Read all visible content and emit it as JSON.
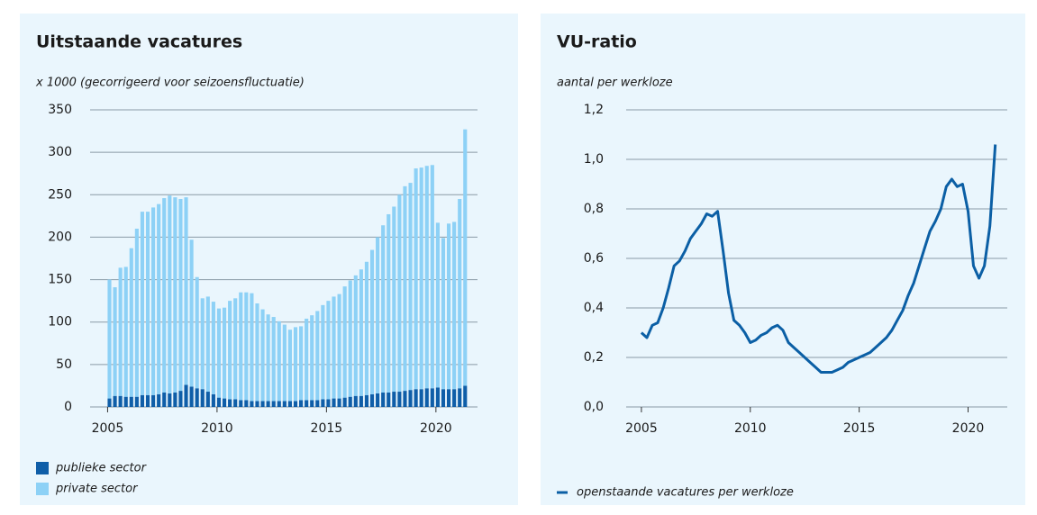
{
  "chart_data": [
    {
      "type": "bar",
      "stacked": true,
      "title": "Uitstaande vacatures",
      "subtitle": "x 1000 (gecorrigeerd voor seizoensfluctuatie)",
      "x": [
        2005,
        2005.25,
        2005.5,
        2005.75,
        2006,
        2006.25,
        2006.5,
        2006.75,
        2007,
        2007.25,
        2007.5,
        2007.75,
        2008,
        2008.25,
        2008.5,
        2008.75,
        2009,
        2009.25,
        2009.5,
        2009.75,
        2010,
        2010.25,
        2010.5,
        2010.75,
        2011,
        2011.25,
        2011.5,
        2011.75,
        2012,
        2012.25,
        2012.5,
        2012.75,
        2013,
        2013.25,
        2013.5,
        2013.75,
        2014,
        2014.25,
        2014.5,
        2014.75,
        2015,
        2015.25,
        2015.5,
        2015.75,
        2016,
        2016.25,
        2016.5,
        2016.75,
        2017,
        2017.25,
        2017.5,
        2017.75,
        2018,
        2018.25,
        2018.5,
        2018.75,
        2019,
        2019.25,
        2019.5,
        2019.75,
        2020,
        2020.25,
        2020.5,
        2020.75,
        2021,
        2021.25
      ],
      "series": [
        {
          "name": "publieke sector",
          "color": "#0f5ea8",
          "values": [
            10,
            13,
            13,
            12,
            12,
            12,
            14,
            14,
            14,
            15,
            17,
            16,
            17,
            19,
            26,
            24,
            22,
            21,
            18,
            15,
            11,
            10,
            9,
            9,
            8,
            8,
            7,
            7,
            7,
            7,
            7,
            7,
            7,
            7,
            7,
            8,
            8,
            8,
            8,
            9,
            9,
            10,
            10,
            11,
            12,
            13,
            13,
            14,
            15,
            16,
            17,
            17,
            18,
            18,
            19,
            20,
            21,
            21,
            22,
            22,
            23,
            21,
            21,
            21,
            22,
            25
          ]
        },
        {
          "name": "private sector",
          "color": "#8dd1f6",
          "values": [
            140,
            128,
            151,
            153,
            175,
            198,
            216,
            216,
            221,
            224,
            229,
            233,
            230,
            226,
            221,
            173,
            131,
            107,
            112,
            109,
            105,
            107,
            116,
            119,
            127,
            127,
            127,
            115,
            108,
            102,
            99,
            94,
            90,
            84,
            87,
            87,
            96,
            100,
            105,
            111,
            116,
            120,
            123,
            131,
            137,
            142,
            149,
            157,
            170,
            184,
            197,
            210,
            218,
            232,
            241,
            244,
            260,
            261,
            262,
            263,
            194,
            178,
            195,
            197,
            223,
            302
          ]
        }
      ],
      "xlim": [
        2004.2,
        2021.9
      ],
      "xticks": [
        2005,
        2010,
        2015,
        2020
      ],
      "ylim": [
        0,
        350
      ],
      "yticks": [
        0,
        50,
        100,
        150,
        200,
        250,
        300,
        350
      ],
      "grid": true,
      "legend": "bottom-left"
    },
    {
      "type": "line",
      "title": "VU-ratio",
      "subtitle": "aantal per werkloze",
      "x": [
        2005,
        2005.25,
        2005.5,
        2005.75,
        2006,
        2006.25,
        2006.5,
        2006.75,
        2007,
        2007.25,
        2007.5,
        2007.75,
        2008,
        2008.25,
        2008.5,
        2008.75,
        2009,
        2009.25,
        2009.5,
        2009.75,
        2010,
        2010.25,
        2010.5,
        2010.75,
        2011,
        2011.25,
        2011.5,
        2011.75,
        2012,
        2012.25,
        2012.5,
        2012.75,
        2013,
        2013.25,
        2013.5,
        2013.75,
        2014,
        2014.25,
        2014.5,
        2014.75,
        2015,
        2015.25,
        2015.5,
        2015.75,
        2016,
        2016.25,
        2016.5,
        2016.75,
        2017,
        2017.25,
        2017.5,
        2017.75,
        2018,
        2018.25,
        2018.5,
        2018.75,
        2019,
        2019.25,
        2019.5,
        2019.75,
        2020,
        2020.25,
        2020.5,
        2020.75,
        2021,
        2021.25
      ],
      "series": [
        {
          "name": "openstaande vacatures per werkloze",
          "color": "#0b5fa5",
          "values": [
            0.3,
            0.28,
            0.33,
            0.34,
            0.4,
            0.48,
            0.57,
            0.59,
            0.63,
            0.68,
            0.71,
            0.74,
            0.78,
            0.77,
            0.79,
            0.63,
            0.46,
            0.35,
            0.33,
            0.3,
            0.26,
            0.27,
            0.29,
            0.3,
            0.32,
            0.33,
            0.31,
            0.26,
            0.24,
            0.22,
            0.2,
            0.18,
            0.16,
            0.14,
            0.14,
            0.14,
            0.15,
            0.16,
            0.18,
            0.19,
            0.2,
            0.21,
            0.22,
            0.24,
            0.26,
            0.28,
            0.31,
            0.35,
            0.39,
            0.45,
            0.5,
            0.57,
            0.64,
            0.71,
            0.75,
            0.8,
            0.89,
            0.92,
            0.89,
            0.9,
            0.79,
            0.57,
            0.52,
            0.57,
            0.73,
            1.06
          ]
        }
      ],
      "xlim": [
        2004.3,
        2021.8
      ],
      "xticks": [
        2005,
        2010,
        2015,
        2020
      ],
      "ylim": [
        0,
        1.2
      ],
      "yticks": [
        {
          "value": 0,
          "label": "0,0"
        },
        {
          "value": 0.2,
          "label": "0,2"
        },
        {
          "value": 0.4,
          "label": "0,4"
        },
        {
          "value": 0.6,
          "label": "0,6"
        },
        {
          "value": 0.8,
          "label": "0,8"
        },
        {
          "value": 1.0,
          "label": "1,0"
        },
        {
          "value": 1.2,
          "label": "1,2"
        }
      ],
      "grid": true,
      "legend": "bottom-left"
    }
  ]
}
